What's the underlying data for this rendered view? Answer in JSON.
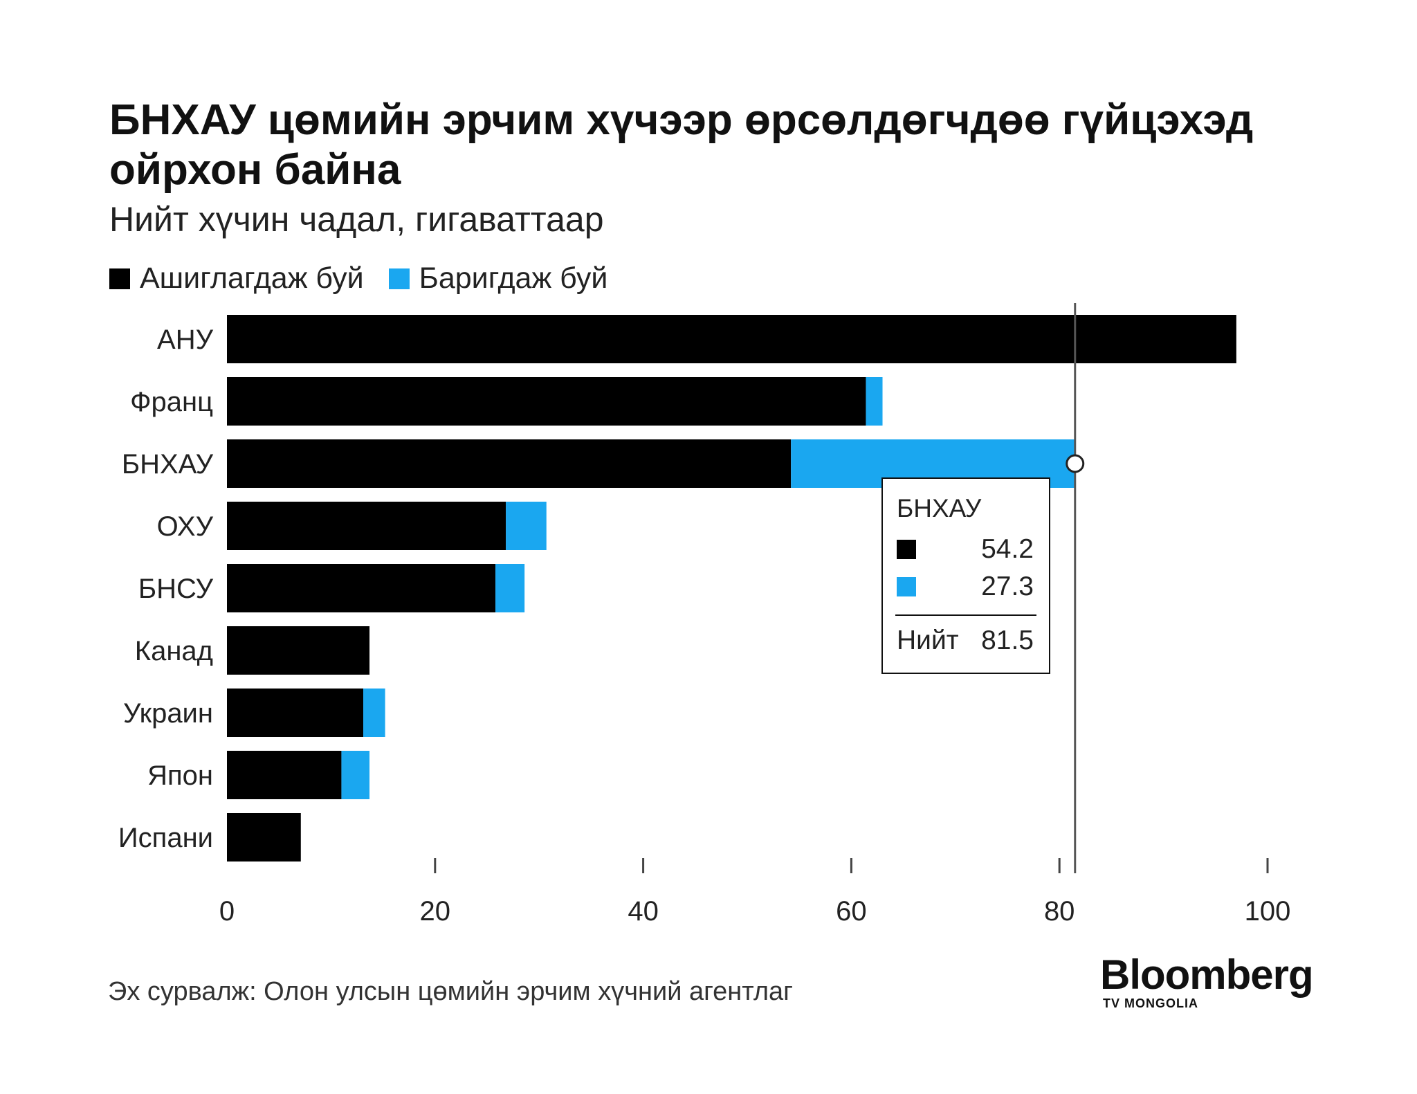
{
  "title": "БНХАУ цөмийн эрчим хүчээр өрсөлдөгчдөө гүйцэхэд ойрхон байна",
  "subtitle": "Нийт хүчин чадал, гигаваттаар",
  "legend": {
    "operating": "Ашиглагдаж буй",
    "under_construction": "Баригдаж буй"
  },
  "colors": {
    "operating": "#000000",
    "under_construction": "#1aa7f0"
  },
  "chart_data": {
    "type": "bar",
    "orientation": "horizontal",
    "stacked": true,
    "categories": [
      "АНУ",
      "Франц",
      "БНХАУ",
      "ОХУ",
      "БНСУ",
      "Канад",
      "Украин",
      "Япон",
      "Испани"
    ],
    "series": [
      {
        "name": "Ашиглагдаж буй",
        "values": [
          97,
          61.4,
          54.2,
          26.8,
          25.8,
          13.7,
          13.1,
          11,
          7.1
        ]
      },
      {
        "name": "Баригдаж буй",
        "values": [
          0,
          1.6,
          27.3,
          3.9,
          2.8,
          0,
          2.1,
          2.7,
          0
        ]
      }
    ],
    "xlim": [
      0,
      100
    ],
    "xticks": [
      0,
      20,
      40,
      60,
      80,
      100
    ],
    "xticklabels": [
      "0",
      "20",
      "40",
      "60",
      "80",
      "100"
    ],
    "reference_line": 81.5,
    "grid": false
  },
  "tooltip": {
    "title": "БНХАУ",
    "operating_value": "54.2",
    "construction_value": "27.3",
    "total_label": "Нийт",
    "total_value": "81.5"
  },
  "source": "Эх сурвалж: Олон улсын цөмийн эрчим хүчний агентлаг",
  "logo": {
    "brand": "Bloomberg",
    "sub": "TV MONGOLIA"
  }
}
